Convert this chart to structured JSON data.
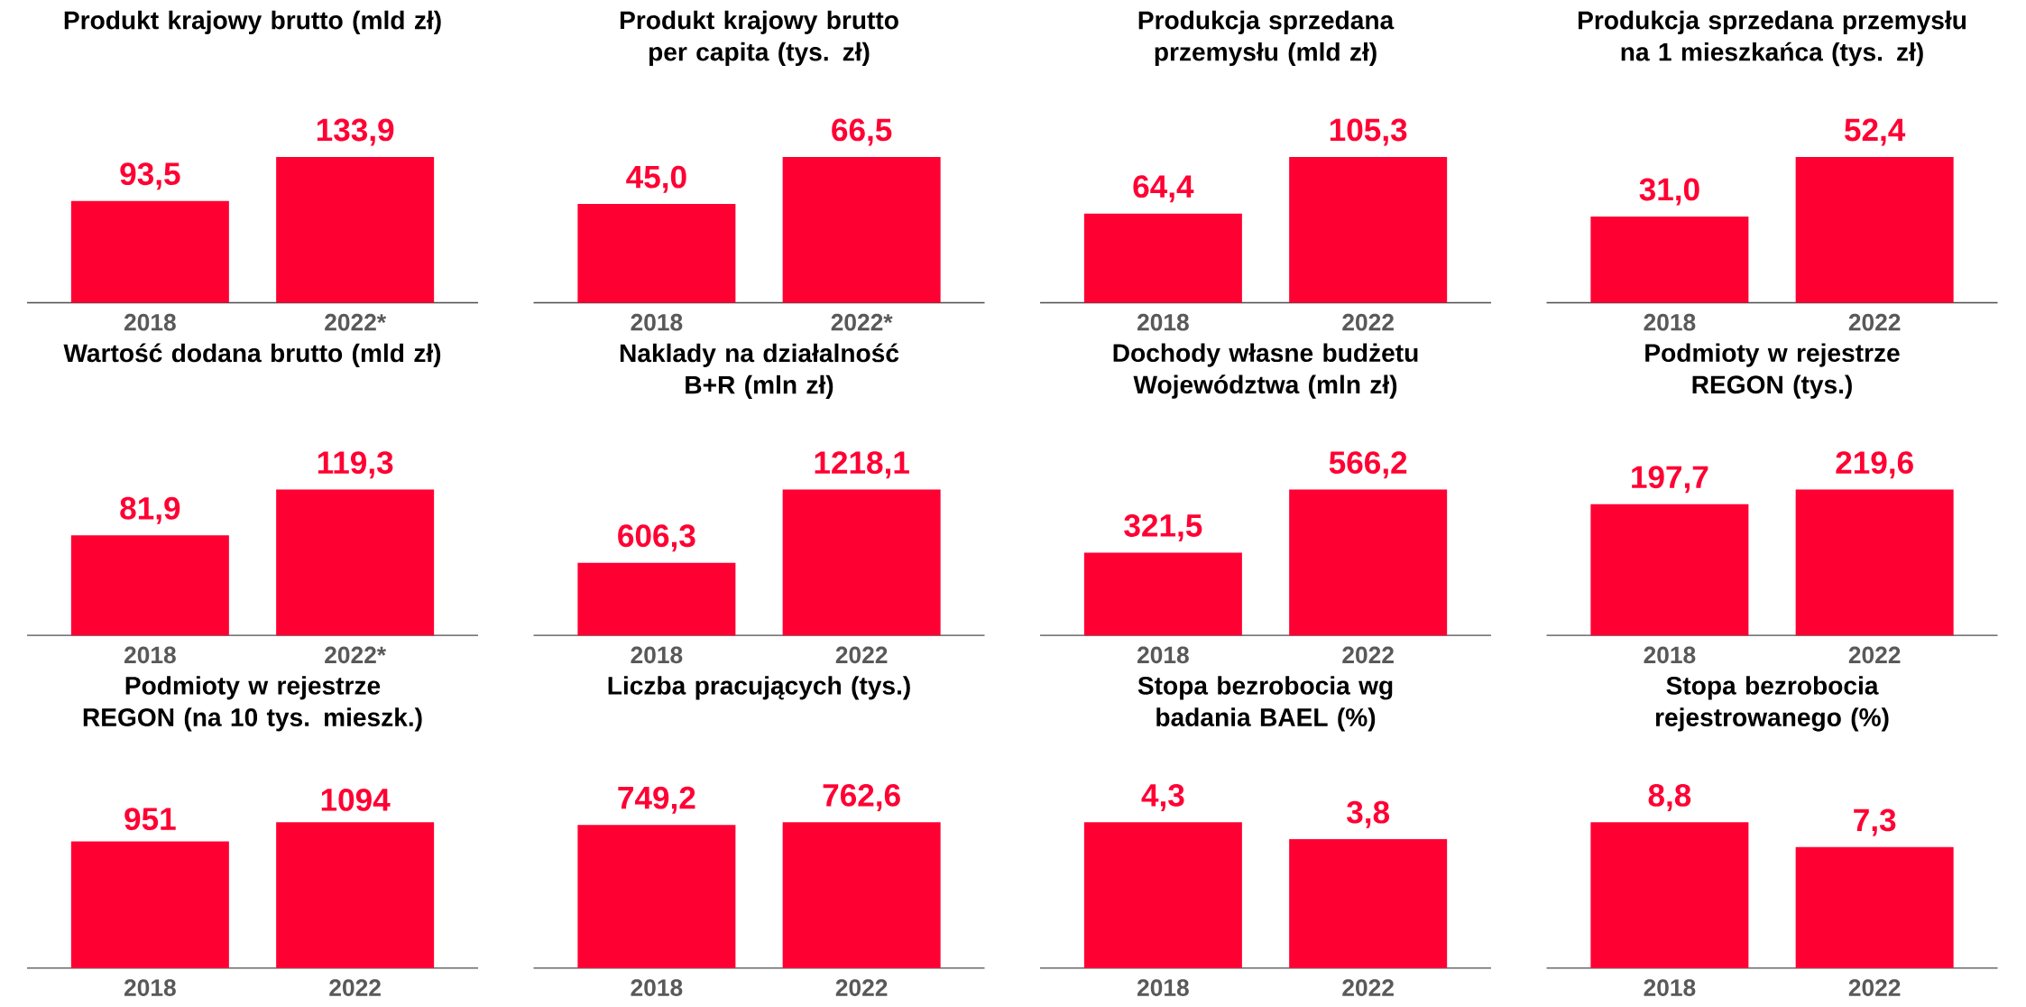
{
  "chart_data": [
    {
      "type": "bar",
      "title": "Produkt krajowy brutto (mld zł)",
      "categories": [
        "2018",
        "2022*"
      ],
      "values": [
        93.5,
        133.9
      ],
      "value_labels": [
        "93,5",
        "133,9"
      ],
      "color": "#ff0033"
    },
    {
      "type": "bar",
      "title": "Produkt krajowy brutto per capita (tys. zł)",
      "categories": [
        "2018",
        "2022*"
      ],
      "values": [
        45.0,
        66.5
      ],
      "value_labels": [
        "45,0",
        "66,5"
      ],
      "color": "#ff0033"
    },
    {
      "type": "bar",
      "title": "Produkcja sprzedana przemysłu (mld zł)",
      "categories": [
        "2018",
        "2022"
      ],
      "values": [
        64.4,
        105.3
      ],
      "value_labels": [
        "64,4",
        "105,3"
      ],
      "color": "#ff0033"
    },
    {
      "type": "bar",
      "title": "Produkcja sprzedana przemysłu na 1 mieszkańca (tys. zł)",
      "categories": [
        "2018",
        "2022"
      ],
      "values": [
        31.0,
        52.4
      ],
      "value_labels": [
        "31,0",
        "52,4"
      ],
      "color": "#ff0033"
    },
    {
      "type": "bar",
      "title": "Wartość dodana brutto (mld zł)",
      "categories": [
        "2018",
        "2022*"
      ],
      "values": [
        81.9,
        119.3
      ],
      "value_labels": [
        "81,9",
        "119,3"
      ],
      "color": "#ff0033"
    },
    {
      "type": "bar",
      "title": "Naklady na działalność B+R (mln zł)",
      "categories": [
        "2018",
        "2022"
      ],
      "values": [
        606.3,
        1218.1
      ],
      "value_labels": [
        "606,3",
        "1218,1"
      ],
      "color": "#ff0033"
    },
    {
      "type": "bar",
      "title": "Dochody własne budżetu Województwa (mln zł)",
      "categories": [
        "2018",
        "2022"
      ],
      "values": [
        321.5,
        566.2
      ],
      "value_labels": [
        "321,5",
        "566,2"
      ],
      "color": "#ff0033"
    },
    {
      "type": "bar",
      "title": "Podmioty w rejestrze REGON (tys.)",
      "categories": [
        "2018",
        "2022"
      ],
      "values": [
        197.7,
        219.6
      ],
      "value_labels": [
        "197,7",
        "219,6"
      ],
      "color": "#ff0033"
    },
    {
      "type": "bar",
      "title": "Podmioty w rejestrze REGON (na 10 tys. mieszk.)",
      "categories": [
        "2018",
        "2022"
      ],
      "values": [
        951,
        1094
      ],
      "value_labels": [
        "951",
        "1094"
      ],
      "color": "#ff0033"
    },
    {
      "type": "bar",
      "title": "Liczba pracujących (tys.)",
      "categories": [
        "2018",
        "2022"
      ],
      "values": [
        749.2,
        762.6
      ],
      "value_labels": [
        "749,2",
        "762,6"
      ],
      "color": "#ff0033"
    },
    {
      "type": "bar",
      "title": "Stopa bezrobocia wg badania BAEL (%)",
      "categories": [
        "2018",
        "2022"
      ],
      "values": [
        4.3,
        3.8
      ],
      "value_labels": [
        "4,3",
        "3,8"
      ],
      "color": "#ff0033"
    },
    {
      "type": "bar",
      "title": "Stopa bezrobocia rejestrowanego (%)",
      "categories": [
        "2018",
        "2022"
      ],
      "values": [
        8.8,
        7.3
      ],
      "value_labels": [
        "8,8",
        "7,3"
      ],
      "color": "#ff0033"
    }
  ]
}
